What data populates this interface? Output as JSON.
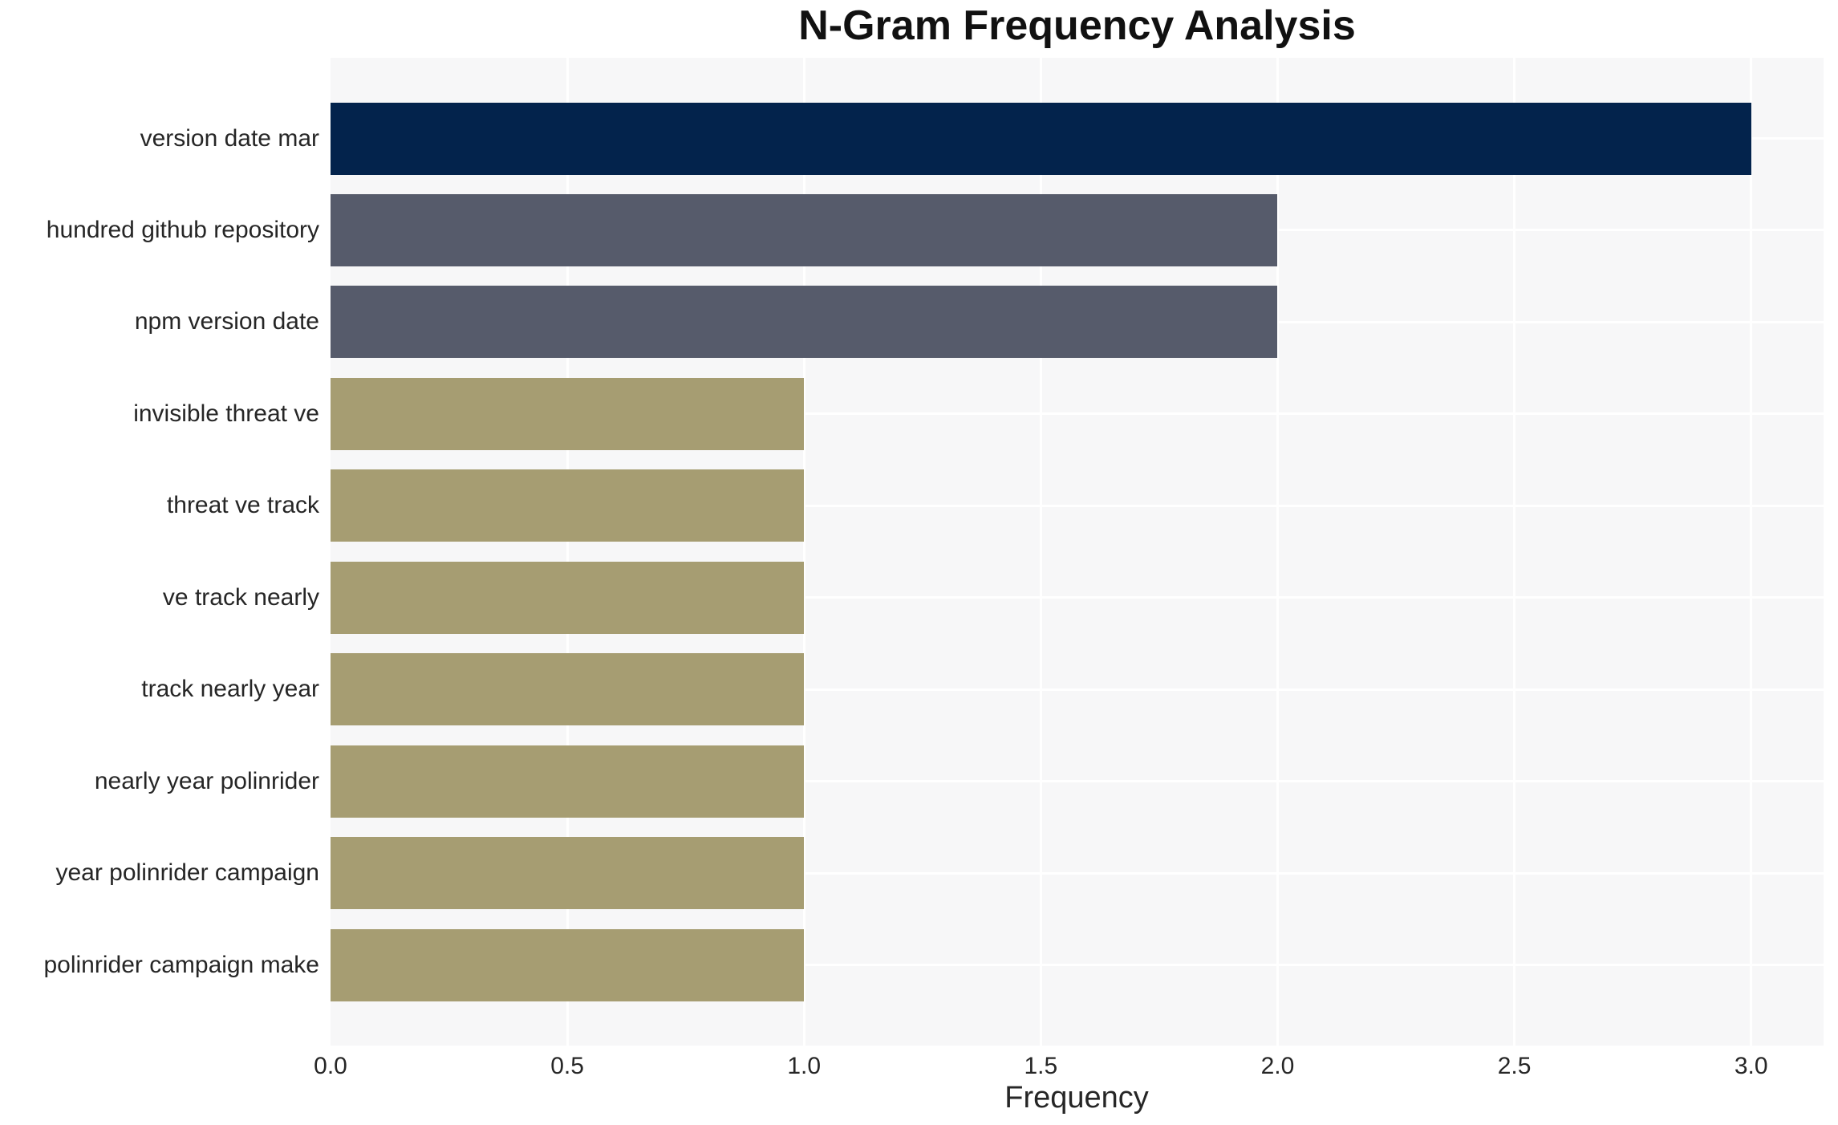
{
  "chart_data": {
    "type": "bar",
    "orientation": "horizontal",
    "title": "N-Gram Frequency Analysis",
    "xlabel": "Frequency",
    "ylabel": "",
    "categories": [
      "version date mar",
      "hundred github repository",
      "npm version date",
      "invisible threat ve",
      "threat ve track",
      "ve track nearly",
      "track nearly year",
      "nearly year polinrider",
      "year polinrider campaign",
      "polinrider campaign make"
    ],
    "values": [
      3,
      2,
      2,
      1,
      1,
      1,
      1,
      1,
      1,
      1
    ],
    "bar_colors": [
      "#03234c",
      "#565b6b",
      "#565b6b",
      "#a69d72",
      "#a69d72",
      "#a69d72",
      "#a69d72",
      "#a69d72",
      "#a69d72",
      "#a69d72"
    ],
    "xlim": [
      0,
      3.153
    ],
    "x_ticks": [
      {
        "value": 0.0,
        "label": "0.0"
      },
      {
        "value": 0.5,
        "label": "0.5"
      },
      {
        "value": 1.0,
        "label": "1.0"
      },
      {
        "value": 1.5,
        "label": "1.5"
      },
      {
        "value": 2.0,
        "label": "2.0"
      },
      {
        "value": 2.5,
        "label": "2.5"
      },
      {
        "value": 3.0,
        "label": "3.0"
      }
    ],
    "grid": "on",
    "legend": "none",
    "colors": {
      "plot_background": "#f7f7f8",
      "gridline": "#ffffff",
      "tick_text": "#262626",
      "title_text": "#111111"
    }
  }
}
